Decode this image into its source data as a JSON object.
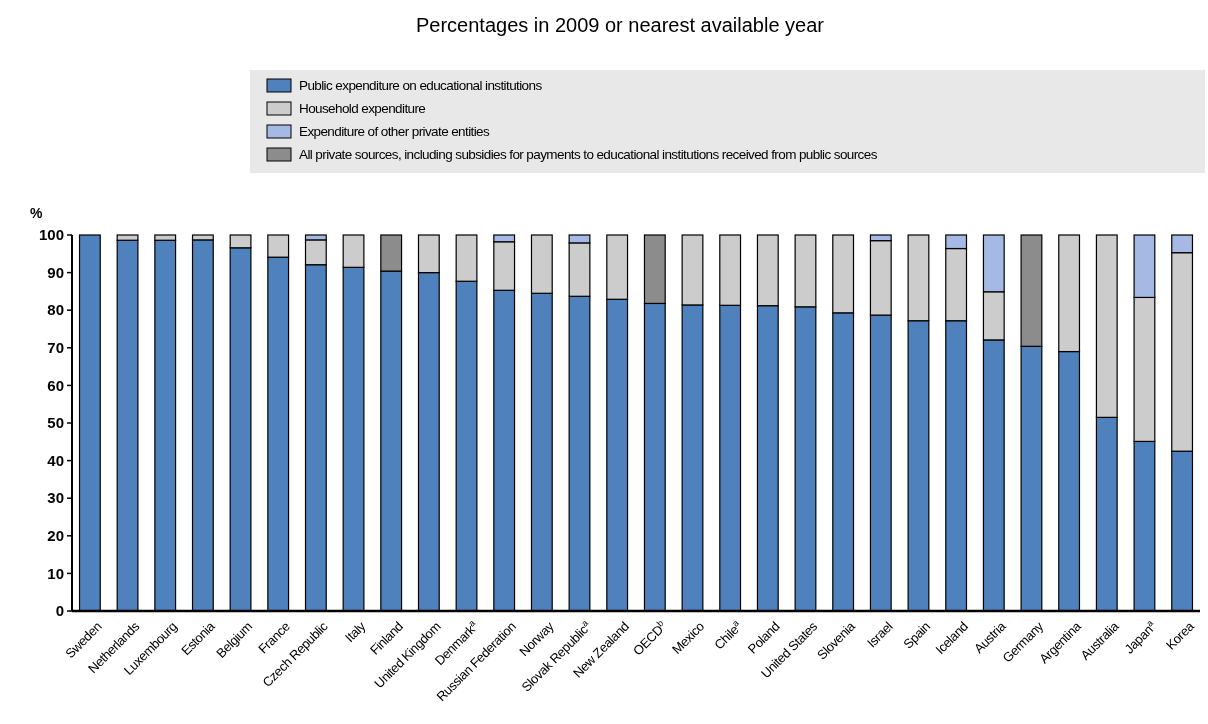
{
  "chart_data": {
    "type": "bar",
    "stacked": true,
    "title": "Percentages in 2009 or nearest available year",
    "ylabel": "%",
    "categories": [
      "Sweden",
      "Netherlands",
      "Luxembourg",
      "Estonia",
      "Belgium",
      "France",
      "Czech Republic",
      "Italy",
      "Finland",
      "United Kingdom",
      "Denmark$^{a}$",
      "Russian Federation",
      "Norway",
      "Slovak Republic$^{a}$",
      "New Zealand",
      "OECD$^{b}$",
      "Mexico",
      "Chile$^{a}$",
      "Poland",
      "United States",
      "Slovenia",
      "Israel",
      "Spain",
      "Iceland",
      "Austria",
      "Germany",
      "Argentina",
      "Australia",
      "Japan$^{a}$",
      "Korea"
    ],
    "series": [
      {
        "name": "Public expenditure on educational institutions",
        "color": "#4f81bd",
        "values": [
          100,
          98.6,
          98.6,
          98.7,
          96.6,
          94.1,
          92.1,
          91.4,
          90.4,
          90.0,
          87.7,
          85.3,
          84.5,
          83.7,
          82.9,
          81.8,
          81.4,
          81.3,
          81.2,
          80.9,
          79.3,
          78.7,
          77.2,
          77.2,
          72.1,
          70.4,
          69.0,
          51.5,
          45.1,
          42.5
        ]
      },
      {
        "name": "Household expenditure",
        "color": "#cccccc",
        "values": [
          null,
          1.4,
          1.4,
          1.3,
          3.4,
          5.9,
          6.6,
          8.6,
          null,
          10.0,
          12.3,
          12.9,
          15.5,
          14.2,
          17.1,
          null,
          18.6,
          18.7,
          18.8,
          19.1,
          20.7,
          19.8,
          22.8,
          19.2,
          12.8,
          null,
          31.0,
          48.5,
          38.3,
          52.8
        ]
      },
      {
        "name": "Expenditure of other private entities",
        "color": "#a6b9e4",
        "values": [
          null,
          null,
          null,
          null,
          null,
          null,
          1.3,
          null,
          null,
          null,
          null,
          1.8,
          null,
          2.1,
          null,
          null,
          null,
          null,
          null,
          null,
          null,
          1.5,
          null,
          3.6,
          15.1,
          null,
          null,
          null,
          16.6,
          4.7
        ]
      },
      {
        "name": "All private sources, including subsidies for payments to educational institutions received from public sources",
        "color": "#8c8c8c",
        "values": [
          null,
          null,
          null,
          null,
          null,
          null,
          null,
          null,
          9.6,
          null,
          null,
          null,
          null,
          null,
          null,
          18.2,
          null,
          null,
          null,
          null,
          null,
          null,
          null,
          null,
          null,
          29.6,
          null,
          null,
          null,
          null
        ]
      }
    ],
    "ylim": [
      0,
      100
    ],
    "yticks": [
      0,
      10,
      20,
      30,
      40,
      50,
      60,
      70,
      80,
      90,
      100
    ],
    "legend": "top",
    "grid": false
  }
}
